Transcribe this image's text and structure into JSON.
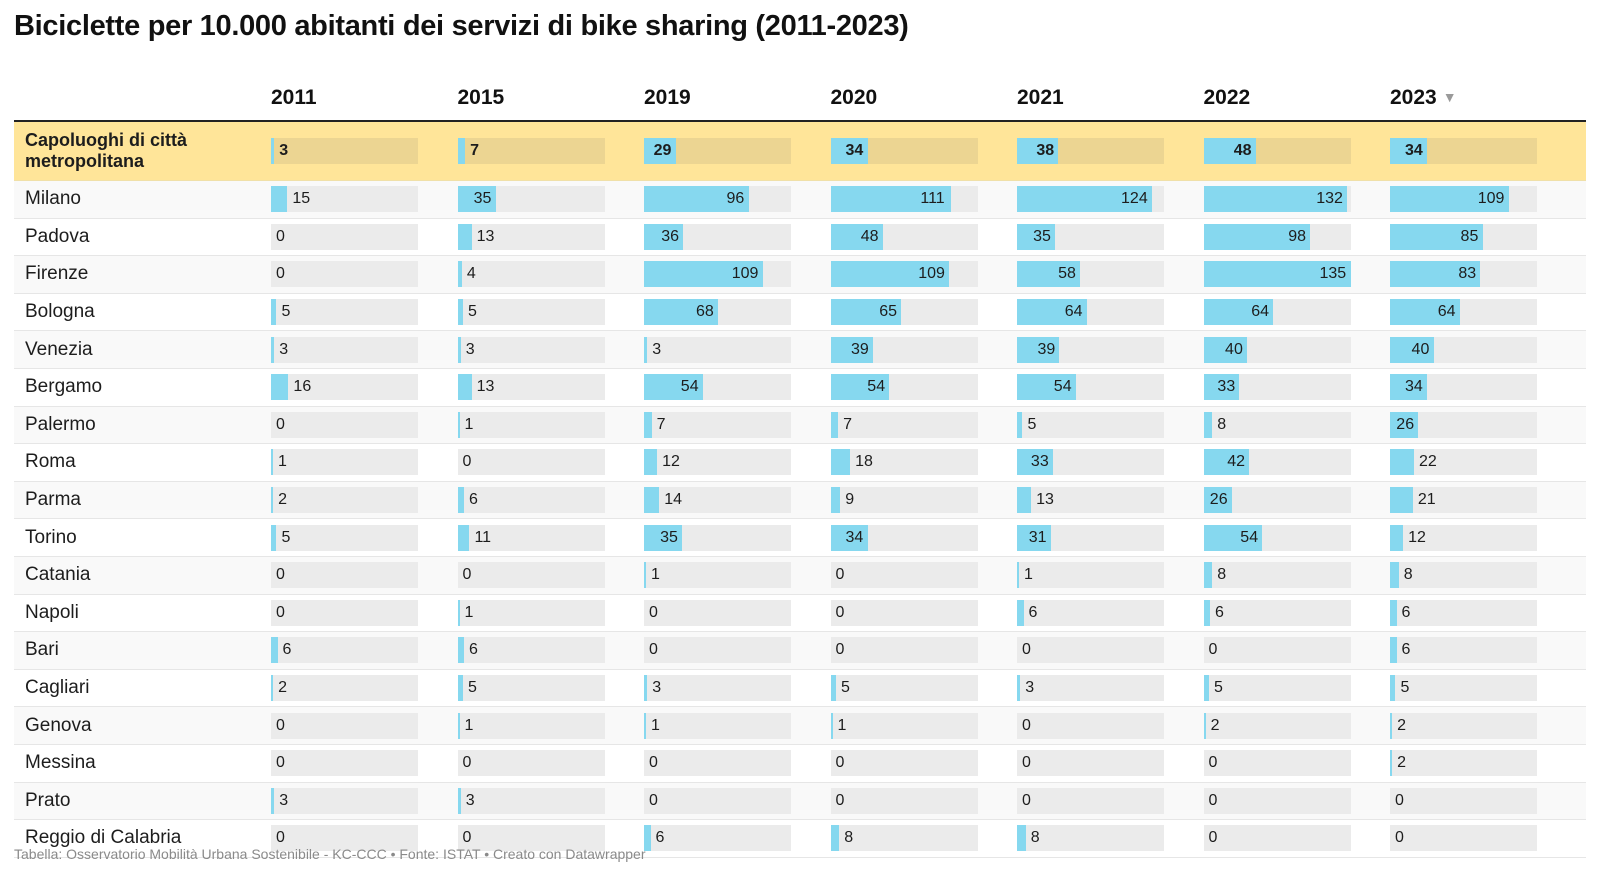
{
  "title": "Biciclette per 10.000 abitanti dei servizi di bike sharing (2011-2023)",
  "footer": "Tabella: Osservatorio Mobilità Urbana Sostenibile - KC-CCC • Fonte: ISTAT • Creato con Datawrapper",
  "sorted_column": "2023",
  "sort_indicator": "▼",
  "colors": {
    "bar": "#86d8ef",
    "bar_bg": "#ebebeb",
    "highlight_bg": "#ffe599",
    "highlight_bar_bg": "#ecd592"
  },
  "chart_data": {
    "type": "table",
    "columns": [
      "2011",
      "2015",
      "2019",
      "2020",
      "2021",
      "2022",
      "2023"
    ],
    "scale_max": 135,
    "rows": [
      {
        "label": "Capoluoghi di città metropolitana",
        "highlight": true,
        "values": [
          3,
          7,
          29,
          34,
          38,
          48,
          34
        ]
      },
      {
        "label": "Milano",
        "values": [
          15,
          35,
          96,
          111,
          124,
          132,
          109
        ]
      },
      {
        "label": "Padova",
        "values": [
          0,
          13,
          36,
          48,
          35,
          98,
          85
        ]
      },
      {
        "label": "Firenze",
        "values": [
          0,
          4,
          109,
          109,
          58,
          135,
          83
        ]
      },
      {
        "label": "Bologna",
        "values": [
          5,
          5,
          68,
          65,
          64,
          64,
          64
        ]
      },
      {
        "label": "Venezia",
        "values": [
          3,
          3,
          3,
          39,
          39,
          40,
          40
        ]
      },
      {
        "label": "Bergamo",
        "values": [
          16,
          13,
          54,
          54,
          54,
          33,
          34
        ]
      },
      {
        "label": "Palermo",
        "values": [
          0,
          1,
          7,
          7,
          5,
          8,
          26
        ]
      },
      {
        "label": "Roma",
        "values": [
          1,
          0,
          12,
          18,
          33,
          42,
          22
        ]
      },
      {
        "label": "Parma",
        "values": [
          2,
          6,
          14,
          9,
          13,
          26,
          21
        ]
      },
      {
        "label": "Torino",
        "values": [
          5,
          11,
          35,
          34,
          31,
          54,
          12
        ]
      },
      {
        "label": "Catania",
        "values": [
          0,
          0,
          1,
          0,
          1,
          8,
          8
        ]
      },
      {
        "label": "Napoli",
        "values": [
          0,
          1,
          0,
          0,
          6,
          6,
          6
        ]
      },
      {
        "label": "Bari",
        "values": [
          6,
          6,
          0,
          0,
          0,
          0,
          6
        ]
      },
      {
        "label": "Cagliari",
        "values": [
          2,
          5,
          3,
          5,
          3,
          5,
          5
        ]
      },
      {
        "label": "Genova",
        "values": [
          0,
          1,
          1,
          1,
          0,
          2,
          2
        ]
      },
      {
        "label": "Messina",
        "values": [
          0,
          0,
          0,
          0,
          0,
          0,
          2
        ]
      },
      {
        "label": "Prato",
        "values": [
          3,
          3,
          0,
          0,
          0,
          0,
          0
        ]
      },
      {
        "label": "Reggio di Calabria",
        "values": [
          0,
          0,
          6,
          8,
          8,
          0,
          0
        ]
      }
    ]
  }
}
